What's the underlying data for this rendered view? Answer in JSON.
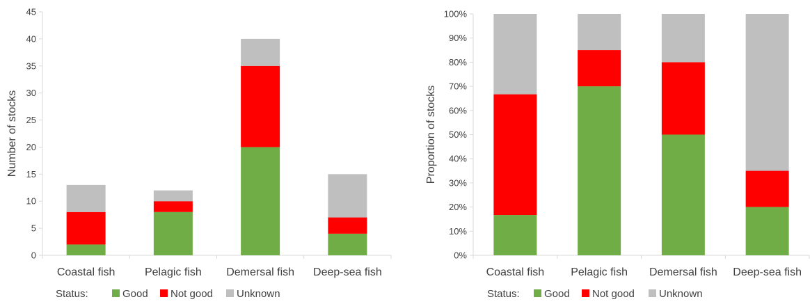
{
  "chart_data": [
    {
      "type": "bar",
      "stacked": true,
      "title": "",
      "xlabel": "",
      "ylabel": "Number of stocks",
      "ylim": [
        0,
        45
      ],
      "yticks": [
        "0",
        "5",
        "10",
        "15",
        "20",
        "25",
        "30",
        "35",
        "40",
        "45"
      ],
      "categories": [
        "Coastal fish",
        "Pelagic fish",
        "Demersal fish",
        "Deep-sea fish"
      ],
      "series": [
        {
          "name": "Good",
          "color": "#70ad47",
          "values": [
            2,
            8,
            20,
            4
          ]
        },
        {
          "name": "Not good",
          "color": "#ff0000",
          "values": [
            6,
            2,
            15,
            3
          ]
        },
        {
          "name": "Unknown",
          "color": "#bfbfbf",
          "values": [
            5,
            2,
            5,
            8
          ]
        }
      ],
      "grid": false,
      "legend": {
        "title": "Status:",
        "position": "bottom"
      }
    },
    {
      "type": "bar",
      "stacked": true,
      "title": "",
      "xlabel": "",
      "ylabel": "Proportion of stocks",
      "ylim": [
        0,
        100
      ],
      "yticks": [
        "0%",
        "10%",
        "20%",
        "30%",
        "40%",
        "50%",
        "60%",
        "70%",
        "80%",
        "90%",
        "100%"
      ],
      "categories": [
        "Coastal fish",
        "Pelagic fish",
        "Demersal fish",
        "Deep-sea fish"
      ],
      "series": [
        {
          "name": "Good",
          "color": "#70ad47",
          "values": [
            16.7,
            70,
            50,
            20
          ]
        },
        {
          "name": "Not good",
          "color": "#ff0000",
          "values": [
            50,
            15,
            30,
            15
          ]
        },
        {
          "name": "Unknown",
          "color": "#bfbfbf",
          "values": [
            33.3,
            15,
            20,
            65
          ]
        }
      ],
      "grid": false,
      "legend": {
        "title": "Status:",
        "position": "bottom"
      }
    }
  ]
}
